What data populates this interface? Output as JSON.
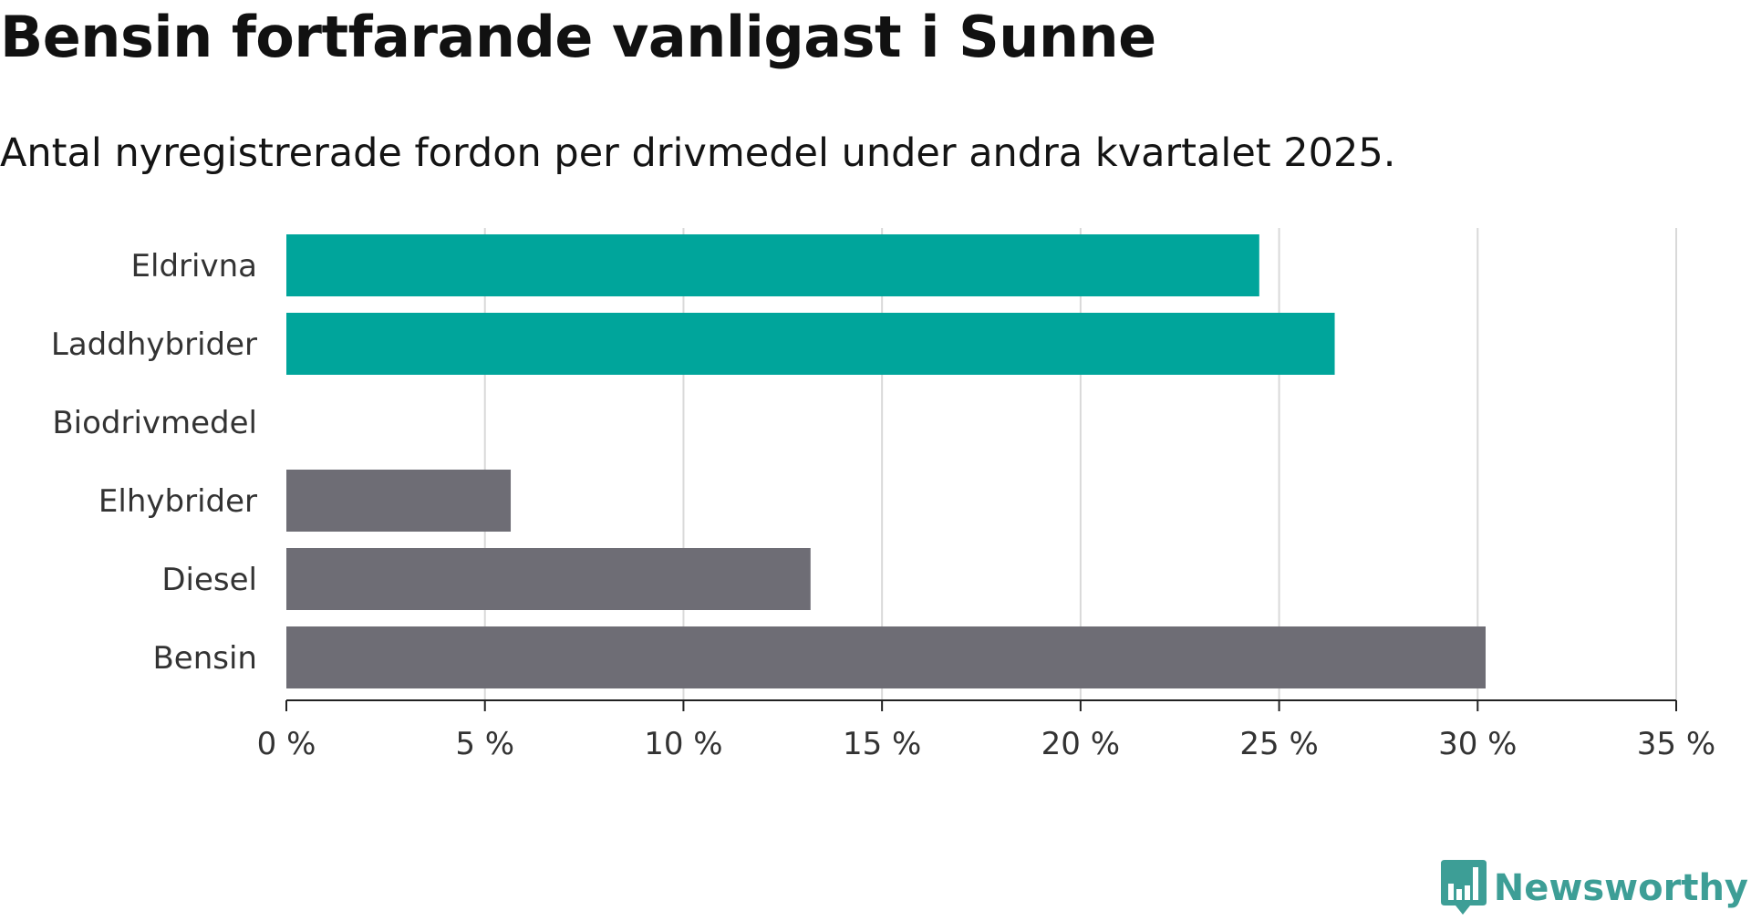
{
  "colors": {
    "ev": "#00a59b",
    "fossil": "#6e6d75",
    "grid": "#d9d9d9",
    "axis": "#222222",
    "brand": "#3d9e96"
  },
  "logo": {
    "icon": "newsworthy-logo-icon",
    "text": "Newsworthy"
  },
  "chart_data": {
    "type": "bar",
    "orientation": "horizontal",
    "title": "Bensin fortfarande vanligast i Sunne",
    "subtitle": "Antal nyregistrerade fordon per drivmedel under andra kvartalet 2025.",
    "xlabel": "",
    "ylabel": "",
    "categories": [
      "Eldrivna",
      "Laddhybrider",
      "Biodrivmedel",
      "Elhybrider",
      "Diesel",
      "Bensin"
    ],
    "values": [
      24.5,
      26.4,
      0,
      5.65,
      13.2,
      30.2
    ],
    "bar_colors": [
      "#00a59b",
      "#00a59b",
      "#00a59b",
      "#6e6d75",
      "#6e6d75",
      "#6e6d75"
    ],
    "xlim": [
      0,
      35
    ],
    "xticks": [
      0,
      5,
      10,
      15,
      20,
      25,
      30,
      35
    ],
    "xtick_labels": [
      "0 %",
      "5 %",
      "10 %",
      "15 %",
      "20 %",
      "25 %",
      "30 %",
      "35 %"
    ],
    "grid": "vertical"
  }
}
